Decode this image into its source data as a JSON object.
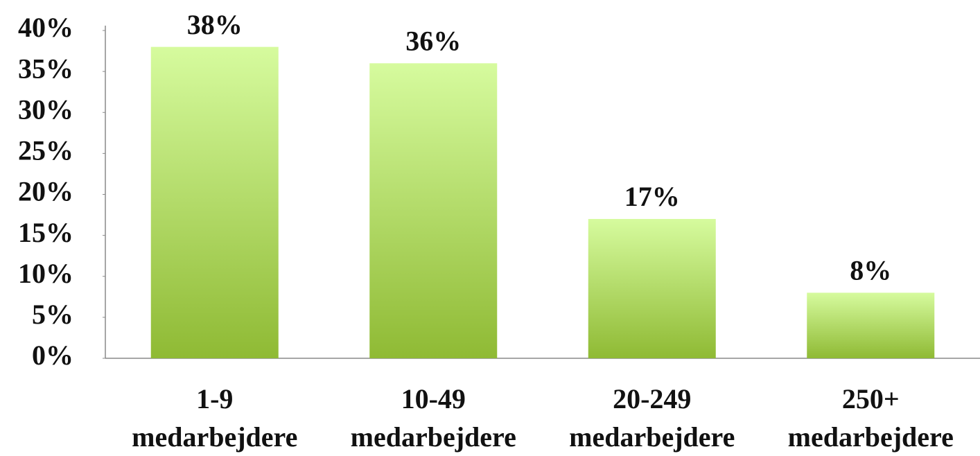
{
  "chart_data": {
    "type": "bar",
    "categories": [
      "1-9\nmedarbejdere",
      "10-49\nmedarbejdere",
      "20-249\nmedarbejdere",
      "250+\nmedarbejdere"
    ],
    "values": [
      38,
      36,
      17,
      8
    ],
    "value_labels": [
      "38%",
      "36%",
      "17%",
      "8%"
    ],
    "color": "#a6cc52",
    "ylim": [
      0,
      40
    ],
    "yticks": [
      {
        "value": 0,
        "label": "0%"
      },
      {
        "value": 5,
        "label": "5%"
      },
      {
        "value": 10,
        "label": "10%"
      },
      {
        "value": 15,
        "label": "15%"
      },
      {
        "value": 20,
        "label": "20%"
      },
      {
        "value": 25,
        "label": "25%"
      },
      {
        "value": 30,
        "label": "30%"
      },
      {
        "value": 35,
        "label": "35%"
      },
      {
        "value": 40,
        "label": "40%"
      }
    ],
    "grid": false
  }
}
